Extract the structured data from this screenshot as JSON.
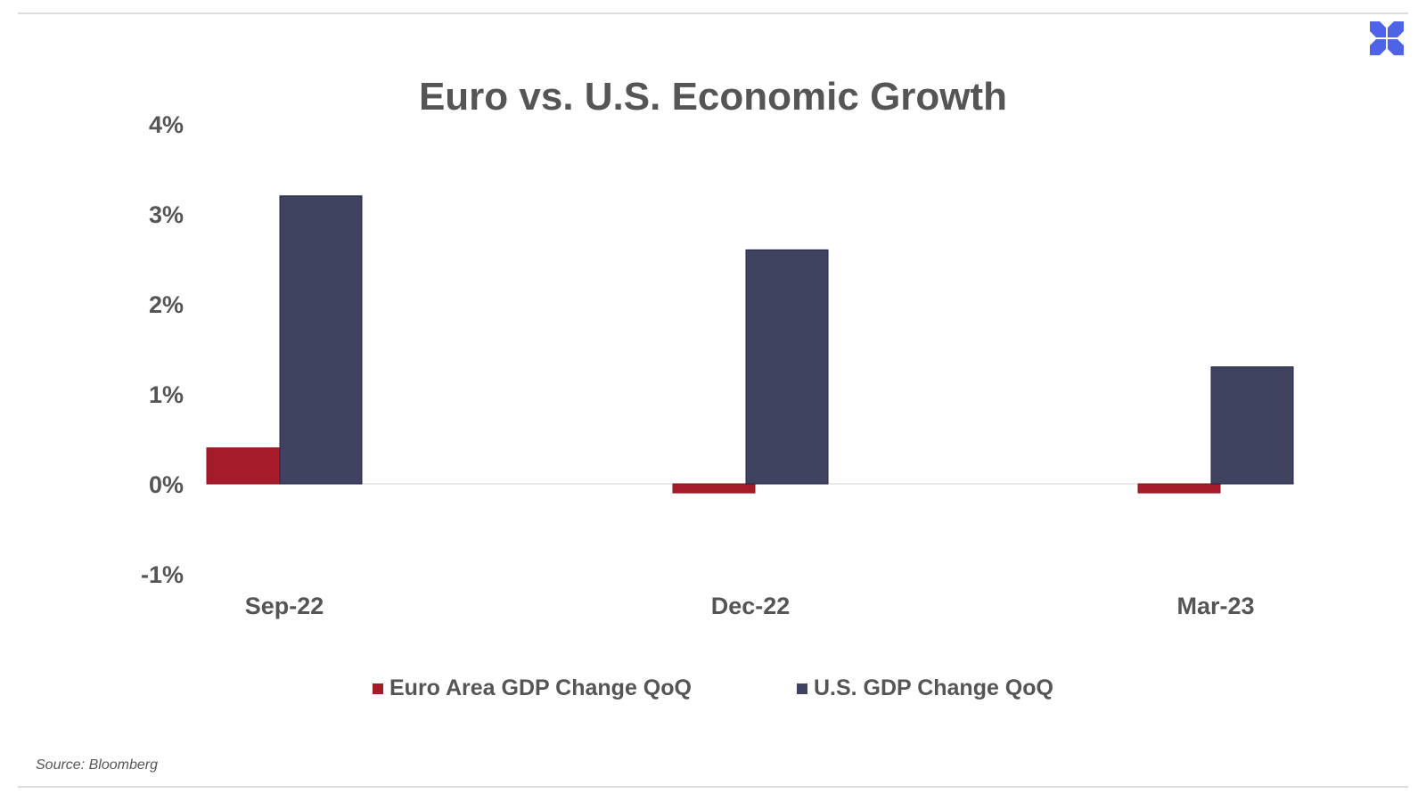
{
  "chart_data": {
    "type": "bar",
    "title": "Euro vs. U.S. Economic Growth",
    "categories": [
      "Sep-22",
      "Dec-22",
      "Mar-23"
    ],
    "series": [
      {
        "name": "Euro Area GDP Change QoQ",
        "values": [
          0.4,
          -0.1,
          -0.1
        ],
        "color": "#a61b29"
      },
      {
        "name": "U.S. GDP Change QoQ",
        "values": [
          3.2,
          2.6,
          1.3
        ],
        "color": "#3f4360"
      }
    ],
    "yticks": [
      4,
      3,
      2,
      1,
      0,
      -1
    ],
    "ytick_labels": [
      "4%",
      "3%",
      "2%",
      "1%",
      "0%",
      "-1%"
    ],
    "ylim": [
      -1,
      4
    ],
    "xlabel": "",
    "ylabel": "",
    "grid": false,
    "legend_position": "bottom"
  },
  "source": "Source: Bloomberg",
  "logo_color": "#4f63e8"
}
